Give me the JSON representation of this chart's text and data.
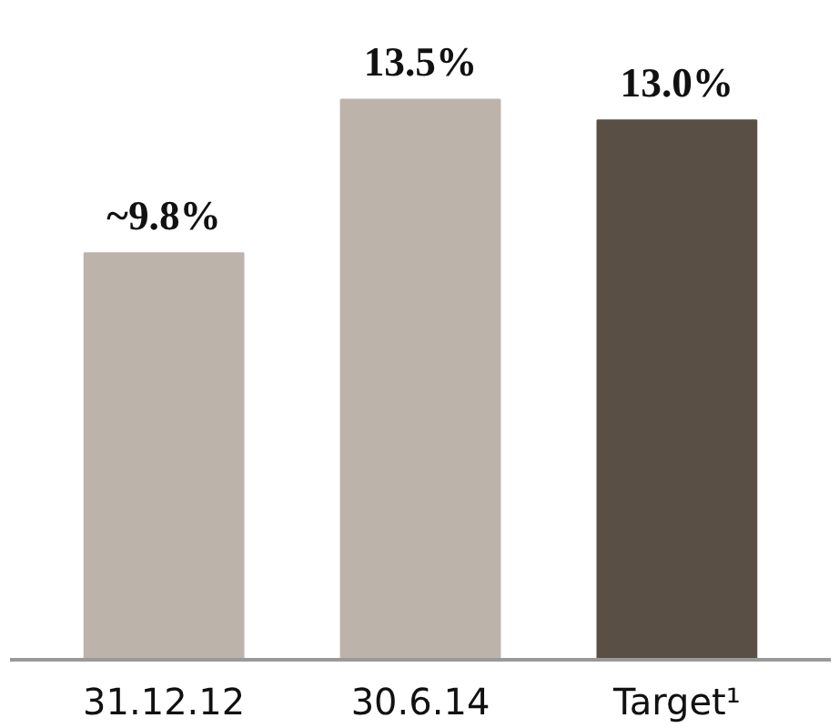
{
  "chart_data": {
    "type": "bar",
    "categories": [
      "31.12.12",
      "30.6.14",
      "Target¹"
    ],
    "values": [
      9.8,
      13.5,
      13.0
    ],
    "value_labels": [
      "~9.8%",
      "13.5%",
      "13.0%"
    ],
    "colors": [
      "#bcb3ab",
      "#bcb3ab",
      "#5a4f45"
    ],
    "grid": false
  }
}
